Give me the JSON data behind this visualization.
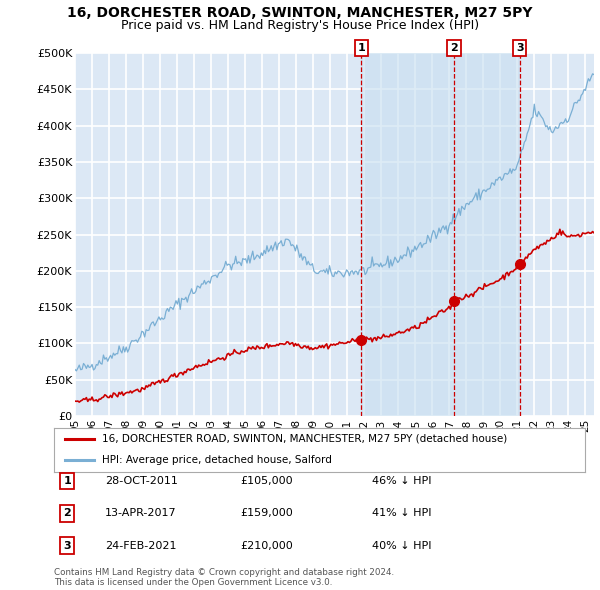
{
  "title": "16, DORCHESTER ROAD, SWINTON, MANCHESTER, M27 5PY",
  "subtitle": "Price paid vs. HM Land Registry's House Price Index (HPI)",
  "ylim": [
    0,
    500000
  ],
  "yticks": [
    0,
    50000,
    100000,
    150000,
    200000,
    250000,
    300000,
    350000,
    400000,
    450000,
    500000
  ],
  "ytick_labels": [
    "£0",
    "£50K",
    "£100K",
    "£150K",
    "£200K",
    "£250K",
    "£300K",
    "£350K",
    "£400K",
    "£450K",
    "£500K"
  ],
  "plot_bg_color": "#dce8f5",
  "grid_color": "#ffffff",
  "sale_color": "#cc0000",
  "hpi_color": "#7aafd4",
  "shade_color": "#c8dff0",
  "sale_label": "16, DORCHESTER ROAD, SWINTON, MANCHESTER, M27 5PY (detached house)",
  "hpi_label": "HPI: Average price, detached house, Salford",
  "sales": [
    {
      "id": 1,
      "date_label": "28-OCT-2011",
      "price": 105000,
      "year": 2011.83
    },
    {
      "id": 2,
      "date_label": "13-APR-2017",
      "price": 159000,
      "year": 2017.28
    },
    {
      "id": 3,
      "date_label": "24-FEB-2021",
      "price": 210000,
      "year": 2021.13
    }
  ],
  "table_rows": [
    [
      "1",
      "28-OCT-2011",
      "£105,000",
      "46% ↓ HPI"
    ],
    [
      "2",
      "13-APR-2017",
      "£159,000",
      "41% ↓ HPI"
    ],
    [
      "3",
      "24-FEB-2021",
      "£210,000",
      "40% ↓ HPI"
    ]
  ],
  "footer": "Contains HM Land Registry data © Crown copyright and database right 2024.\nThis data is licensed under the Open Government Licence v3.0.",
  "title_fontsize": 10,
  "subtitle_fontsize": 9,
  "xlim_left": 1995.0,
  "xlim_right": 2025.5
}
